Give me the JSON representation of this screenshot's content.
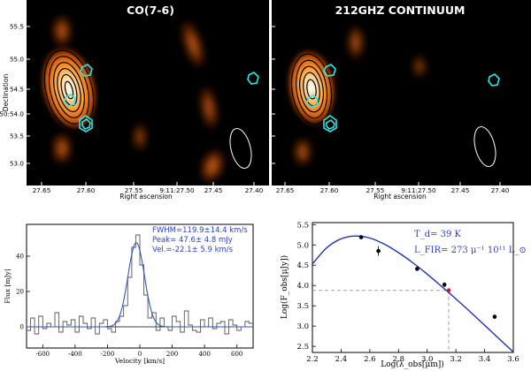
{
  "colors": {
    "map_bg": "#000000",
    "emission_hot": "#ffffff",
    "emission_mid": "#ff8a1e",
    "emission_low": "#7a2a00",
    "contour": "#000000",
    "cyan": "#2ee6e6",
    "beam": "#ffffff",
    "spectrum_data": "#555555",
    "spectrum_fit": "#2f55c8",
    "sed_curve": "#1f2fb8",
    "annotation_blue": "#2f3fc8",
    "highlight_point": "#b0203a",
    "dashed": "#888888"
  },
  "maps": {
    "ylabel": "Declination",
    "xlabel": "Right ascension",
    "yticks": [
      "55.5",
      "55.0",
      "54.5",
      "5:50:54.0",
      "53.5",
      "53.0"
    ],
    "xticks": [
      "27.65",
      "27.60",
      "27.55",
      "9:11:27.50",
      "27.45",
      "27.40"
    ],
    "left": {
      "title": "CO(7-6)"
    },
    "right": {
      "title": "212GHZ CONTINUUM"
    }
  },
  "chart_data": [
    {
      "type": "line",
      "title": "",
      "xlabel": "Velocity [km/s]",
      "ylabel": "Flux [mJy]",
      "xlim": [
        -700,
        700
      ],
      "ylim": [
        -12,
        58
      ],
      "xticks": [
        -600,
        -400,
        -200,
        0,
        200,
        400,
        600
      ],
      "yticks": [
        0,
        20,
        40
      ],
      "annotations": [
        "FWHM=119.9±14.4 km/s",
        "Peak= 47.6± 4.8 mJy",
        "Vel.=-22.1± 5.9 km/s"
      ],
      "series": [
        {
          "name": "observed (histogram)",
          "step": true,
          "bin_width": 25,
          "x": [
            -700,
            -675,
            -650,
            -625,
            -600,
            -575,
            -550,
            -525,
            -500,
            -475,
            -450,
            -425,
            -400,
            -375,
            -350,
            -325,
            -300,
            -275,
            -250,
            -225,
            -200,
            -175,
            -150,
            -125,
            -100,
            -75,
            -50,
            -25,
            0,
            25,
            50,
            75,
            100,
            125,
            150,
            175,
            200,
            225,
            250,
            275,
            300,
            325,
            350,
            375,
            400,
            425,
            450,
            475,
            500,
            525,
            550,
            575,
            600,
            625,
            650,
            675
          ],
          "values": [
            -2,
            5,
            -4,
            6,
            -1,
            2,
            0,
            8,
            -3,
            3,
            1,
            4,
            -3,
            6,
            2,
            -1,
            5,
            -4,
            2,
            4,
            -1,
            -3,
            3,
            6,
            12,
            28,
            45,
            52,
            35,
            18,
            5,
            8,
            -2,
            5,
            0,
            -2,
            6,
            3,
            -3,
            9,
            1,
            -2,
            -3,
            4,
            0,
            5,
            -1,
            2,
            3,
            -4,
            4,
            1,
            -2,
            0,
            3,
            2
          ]
        },
        {
          "name": "Gaussian fit",
          "model": "gaussian",
          "peak": 47.6,
          "center": -22.1,
          "fwhm": 119.9
        }
      ]
    },
    {
      "type": "scatter",
      "title": "",
      "xlabel": "Log(λ_obs[μm])",
      "ylabel": "Log(F_obs[μJy])",
      "xlim": [
        2.2,
        3.6
      ],
      "ylim": [
        2.35,
        5.55
      ],
      "xticks": [
        2.2,
        2.4,
        2.6,
        2.8,
        3.0,
        3.2,
        3.4,
        3.6
      ],
      "yticks": [
        2.5,
        3.0,
        3.5,
        4.0,
        4.5,
        5.0,
        5.5
      ],
      "annotations": [
        "T_d= 39 K",
        "L_FIR= 273 μ⁻¹ 10¹¹ L_⊙"
      ],
      "series": [
        {
          "name": "photometry",
          "x": [
            2.54,
            2.66,
            2.93,
            3.12,
            3.47
          ],
          "y": [
            5.19,
            4.85,
            4.41,
            4.02,
            3.23
          ],
          "yerr": [
            0.05,
            0.12,
            0.05,
            0.06,
            0.05
          ]
        },
        {
          "name": "212 GHz point",
          "x": [
            3.15
          ],
          "y": [
            3.88
          ]
        },
        {
          "name": "SED fit curve",
          "x": [
            2.2,
            2.3,
            2.4,
            2.5,
            2.6,
            2.7,
            2.8,
            2.9,
            3.0,
            3.1,
            3.2,
            3.3,
            3.4,
            3.5,
            3.6
          ],
          "y": [
            4.53,
            4.93,
            5.15,
            5.22,
            5.17,
            5.02,
            4.81,
            4.56,
            4.28,
            3.98,
            3.67,
            3.35,
            3.02,
            2.69,
            2.36
          ]
        }
      ],
      "reference_lines": {
        "x": 3.15,
        "y": 3.88
      }
    }
  ]
}
